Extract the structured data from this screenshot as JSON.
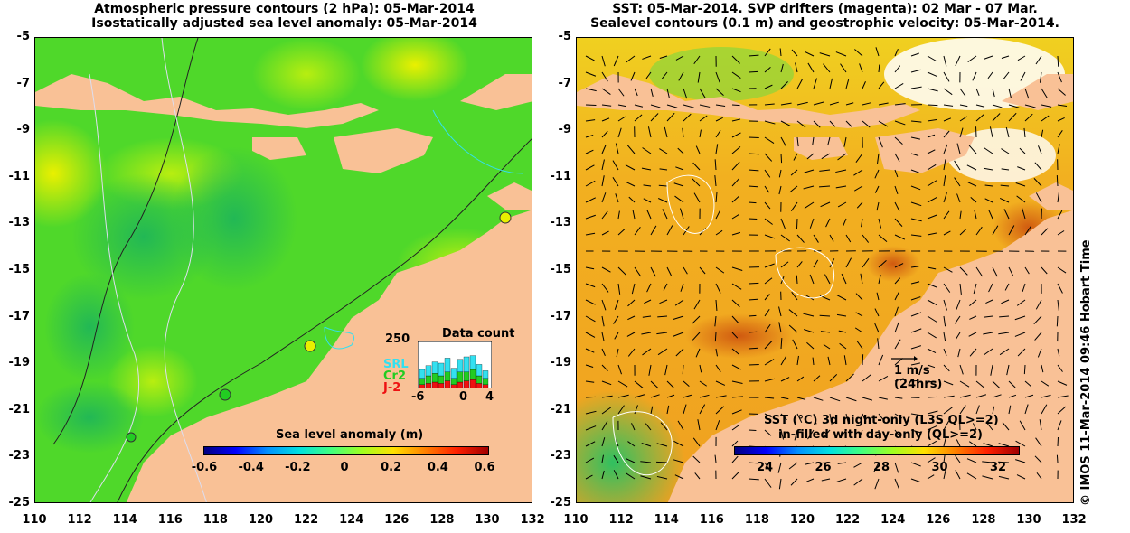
{
  "left_panel": {
    "title_line1": "Atmospheric pressure contours (2 hPa): 05-Mar-2014",
    "title_line2": "Isostatically adjusted sea level anomaly: 05-Mar-2014",
    "colorbar_label": "Sea level anomaly (m)",
    "colorbar_ticks": [
      "-0.6",
      "-0.4",
      "-0.2",
      "0",
      "0.2",
      "0.4",
      "0.6"
    ],
    "inset": {
      "title": "Data count",
      "ymax_label": "250",
      "series": [
        {
          "name": "SRL",
          "color": "#33e0f0"
        },
        {
          "name": "Cr2",
          "color": "#22cc22"
        },
        {
          "name": "J-2",
          "color": "#ee1111"
        }
      ],
      "xticks": [
        "-6",
        "0",
        "4"
      ]
    }
  },
  "right_panel": {
    "title_line1": "SST: 05-Mar-2014. SVP drifters (magenta): 02 Mar - 07 Mar.",
    "title_line2": "Sealevel contours (0.1 m) and geostrophic velocity: 05-Mar-2014.",
    "colorbar_label_line1": "SST (°C)  3d night-only (L3S QL>=2)",
    "colorbar_label_line2": "in-filled with day-only (QL>=2)",
    "colorbar_ticks": [
      "24",
      "26",
      "28",
      "30",
      "32"
    ],
    "scale_arrow_label1": "1 m/s",
    "scale_arrow_label2": "(24hrs)"
  },
  "axes": {
    "y_ticks": [
      "-5",
      "-7",
      "-9",
      "-11",
      "-13",
      "-15",
      "-17",
      "-19",
      "-21",
      "-23",
      "-25"
    ],
    "x_ticks": [
      "110",
      "112",
      "114",
      "116",
      "118",
      "120",
      "122",
      "124",
      "126",
      "128",
      "130",
      "132"
    ]
  },
  "credit": "© IMOS 11-Mar-2014 09:46 Hobart Time",
  "colors": {
    "land": "#f9c196",
    "sla_green": "#55dd22",
    "sst_orange": "#f5a623"
  }
}
